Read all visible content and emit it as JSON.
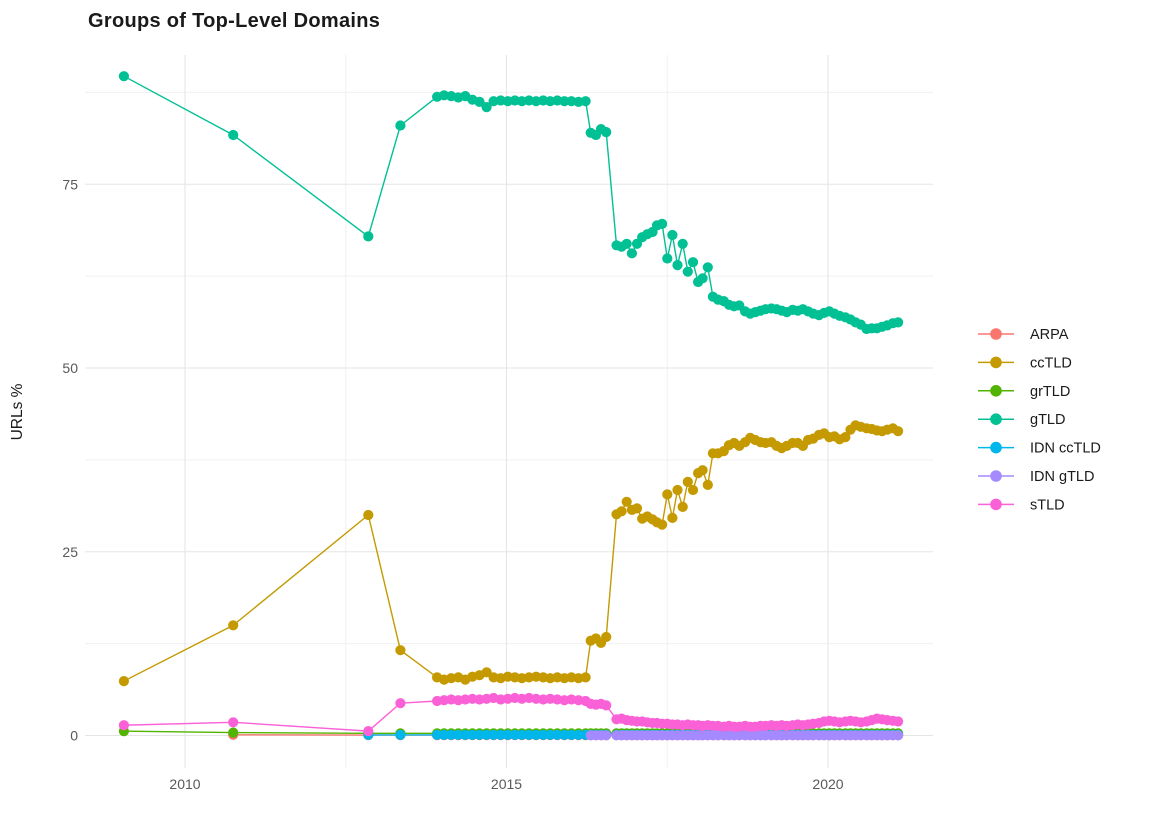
{
  "chart_data": {
    "type": "line",
    "title": "Groups of Top-Level Domains",
    "xlabel": "",
    "ylabel": "URLs %",
    "legend_position": "right",
    "grid": true,
    "xlim": [
      2008.45,
      2021.6
    ],
    "ylim": [
      -4.5,
      92
    ],
    "x_ticks": [
      {
        "label": "2010",
        "value": 2010
      },
      {
        "label": "2015",
        "value": 2015
      },
      {
        "label": "2020",
        "value": 2020
      }
    ],
    "y_ticks": [
      {
        "label": "0",
        "value": 0
      },
      {
        "label": "25",
        "value": 25
      },
      {
        "label": "50",
        "value": 50
      },
      {
        "label": "75",
        "value": 75
      }
    ],
    "x_minor": [
      2012.5,
      2017.5
    ],
    "y_minor": [
      12.5,
      37.5,
      62.5,
      87.5
    ],
    "x_grid": [
      2009.05,
      2010.75,
      2012.85,
      2013.35,
      2013.92,
      2014.03,
      2014.14,
      2014.25,
      2014.36,
      2014.47,
      2014.58,
      2014.69,
      2014.8,
      2014.91,
      2015.02,
      2015.13,
      2015.24,
      2015.35,
      2015.46,
      2015.57,
      2015.68,
      2015.79,
      2015.9,
      2016.01,
      2016.12,
      2016.23,
      2016.31,
      2016.39,
      2016.47,
      2016.55,
      2016.71,
      2016.79,
      2016.87,
      2016.95,
      2017.03,
      2017.11,
      2017.19,
      2017.27,
      2017.34,
      2017.42,
      2017.5,
      2017.58,
      2017.66,
      2017.74,
      2017.82,
      2017.9,
      2017.98,
      2018.05,
      2018.13,
      2018.21,
      2018.29,
      2018.38,
      2018.46,
      2018.54,
      2018.62,
      2018.71,
      2018.79,
      2018.87,
      2018.95,
      2019.03,
      2019.12,
      2019.2,
      2019.28,
      2019.36,
      2019.45,
      2019.53,
      2019.61,
      2019.69,
      2019.77,
      2019.86,
      2019.94,
      2020.02,
      2020.1,
      2020.18,
      2020.27,
      2020.35,
      2020.43,
      2020.51,
      2020.6,
      2020.68,
      2020.76,
      2020.84,
      2020.92,
      2021.01,
      2021.09
    ],
    "series": [
      {
        "name": "ARPA",
        "slug": "arpa",
        "color": "#F8766D",
        "start_index": 1,
        "y_head": [
          0.1
        ],
        "y_fill": {
          "value": 0.05,
          "count": 83
        }
      },
      {
        "name": "ccTLD",
        "slug": "cctld",
        "color": "#C49A00",
        "start_index": 0,
        "y": [
          7.4,
          15.0,
          30.0,
          11.6,
          7.9,
          7.6,
          7.8,
          7.9,
          7.6,
          8.0,
          8.2,
          8.6,
          7.9,
          7.8,
          8.0,
          7.9,
          7.8,
          7.9,
          8.0,
          7.9,
          7.8,
          7.9,
          7.8,
          7.9,
          7.8,
          7.9,
          12.9,
          13.2,
          12.6,
          13.4,
          30.1,
          30.5,
          31.8,
          30.7,
          30.9,
          29.5,
          29.8,
          29.4,
          29.0,
          28.7,
          32.8,
          29.6,
          33.4,
          31.1,
          34.5,
          33.4,
          35.7,
          36.1,
          34.1,
          38.4,
          38.4,
          38.7,
          39.5,
          39.8,
          39.4,
          39.9,
          40.5,
          40.2,
          39.9,
          39.8,
          39.9,
          39.4,
          39.1,
          39.4,
          39.8,
          39.8,
          39.4,
          40.2,
          40.4,
          40.9,
          41.1,
          40.6,
          40.7,
          40.3,
          40.6,
          41.6,
          42.2,
          42.0,
          41.8,
          41.7,
          41.5,
          41.4,
          41.6,
          41.8,
          41.4
        ]
      },
      {
        "name": "grTLD",
        "slug": "grtld",
        "color": "#53B400",
        "start_index": 0,
        "y_head": [
          0.6,
          0.4
        ],
        "y_fill": {
          "value": 0.3,
          "count": 83
        }
      },
      {
        "name": "gTLD",
        "slug": "gtld",
        "color": "#00C094",
        "start_index": 0,
        "y": [
          89.7,
          81.7,
          67.9,
          83.0,
          86.9,
          87.1,
          87.0,
          86.8,
          87.0,
          86.5,
          86.2,
          85.5,
          86.3,
          86.4,
          86.3,
          86.4,
          86.3,
          86.4,
          86.3,
          86.4,
          86.3,
          86.4,
          86.3,
          86.3,
          86.2,
          86.3,
          82.0,
          81.7,
          82.5,
          82.1,
          66.7,
          66.5,
          66.9,
          65.6,
          66.9,
          67.8,
          68.2,
          68.5,
          69.4,
          69.6,
          64.9,
          68.1,
          64.0,
          66.9,
          63.1,
          64.4,
          61.7,
          62.2,
          63.7,
          59.7,
          59.3,
          59.1,
          58.6,
          58.4,
          58.5,
          57.7,
          57.4,
          57.6,
          57.8,
          58.0,
          58.1,
          58.0,
          57.8,
          57.6,
          57.9,
          57.8,
          58.0,
          57.7,
          57.4,
          57.2,
          57.5,
          57.7,
          57.4,
          57.1,
          56.9,
          56.6,
          56.2,
          55.9,
          55.3,
          55.4,
          55.4,
          55.6,
          55.8,
          56.1,
          56.2
        ]
      },
      {
        "name": "IDN ccTLD",
        "slug": "idn-cctld",
        "color": "#00B6EB",
        "start_index": 2,
        "y_fill": {
          "value": 0.08,
          "count": 83
        }
      },
      {
        "name": "IDN gTLD",
        "slug": "idn-gtld",
        "color": "#A58AFF",
        "start_index": 26,
        "y_fill": {
          "value": 0.03,
          "count": 59
        }
      },
      {
        "name": "sTLD",
        "slug": "stld",
        "color": "#FB61D7",
        "start_index": 0,
        "y": [
          1.4,
          1.8,
          0.6,
          4.4,
          4.7,
          4.8,
          4.9,
          4.8,
          4.9,
          5.0,
          4.9,
          5.0,
          5.1,
          4.9,
          5.0,
          5.1,
          5.0,
          5.1,
          5.0,
          4.9,
          5.0,
          4.9,
          4.8,
          4.9,
          4.8,
          4.7,
          4.3,
          4.2,
          4.3,
          4.1,
          2.2,
          2.3,
          2.1,
          2.0,
          1.9,
          1.9,
          1.8,
          1.7,
          1.7,
          1.6,
          1.6,
          1.5,
          1.5,
          1.4,
          1.5,
          1.4,
          1.4,
          1.3,
          1.4,
          1.3,
          1.3,
          1.2,
          1.3,
          1.2,
          1.2,
          1.3,
          1.2,
          1.2,
          1.3,
          1.3,
          1.4,
          1.3,
          1.4,
          1.3,
          1.4,
          1.5,
          1.4,
          1.5,
          1.6,
          1.7,
          1.9,
          2.0,
          1.9,
          1.8,
          1.9,
          2.0,
          1.9,
          1.8,
          1.9,
          2.1,
          2.3,
          2.2,
          2.1,
          2.0,
          1.9
        ]
      }
    ]
  }
}
